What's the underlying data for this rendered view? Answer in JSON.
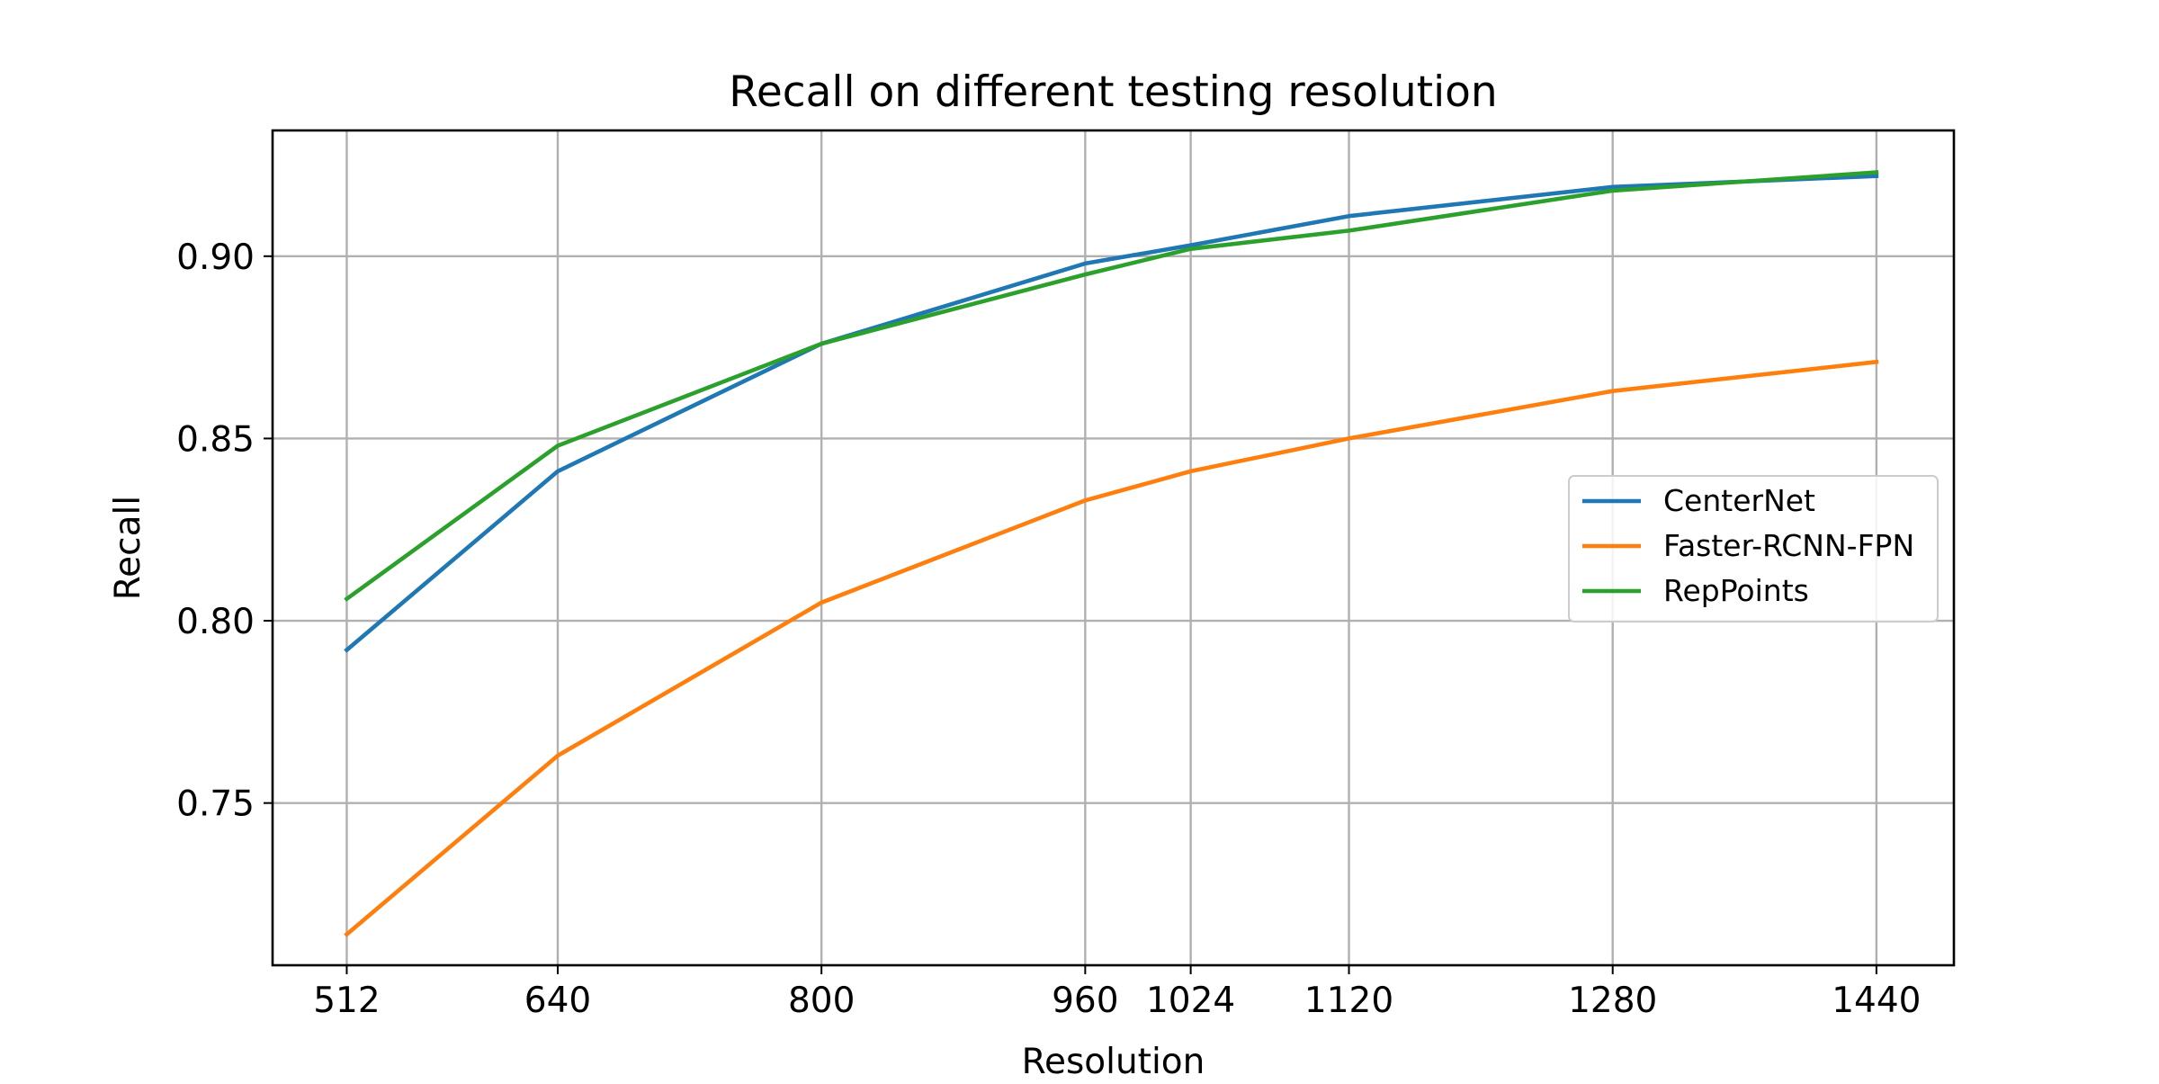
{
  "chart_data": {
    "type": "line",
    "title": "Recall on different testing resolution",
    "xlabel": "Resolution",
    "ylabel": "Recall",
    "x": [
      512,
      640,
      800,
      960,
      1024,
      1120,
      1280,
      1440
    ],
    "xticks": [
      "512",
      "640",
      "800",
      "960",
      "1024",
      "1120",
      "1280",
      "1440"
    ],
    "yticks": [
      0.75,
      0.8,
      0.85,
      0.9
    ],
    "ytick_labels": [
      "0.75",
      "0.80",
      "0.85",
      "0.90"
    ],
    "xlim": [
      467,
      1487
    ],
    "ylim": [
      0.7055,
      0.9345
    ],
    "grid": true,
    "legend_position": "center-right",
    "series": [
      {
        "name": "CenterNet",
        "color": "#1f77b4",
        "values": [
          0.792,
          0.841,
          0.876,
          0.898,
          0.903,
          0.911,
          0.919,
          0.922
        ]
      },
      {
        "name": "Faster-RCNN-FPN",
        "color": "#ff7f0e",
        "values": [
          0.714,
          0.763,
          0.805,
          0.833,
          0.841,
          0.85,
          0.863,
          0.871
        ]
      },
      {
        "name": "RepPoints",
        "color": "#2ca02c",
        "values": [
          0.806,
          0.848,
          0.876,
          0.895,
          0.902,
          0.907,
          0.918,
          0.923
        ]
      }
    ]
  }
}
